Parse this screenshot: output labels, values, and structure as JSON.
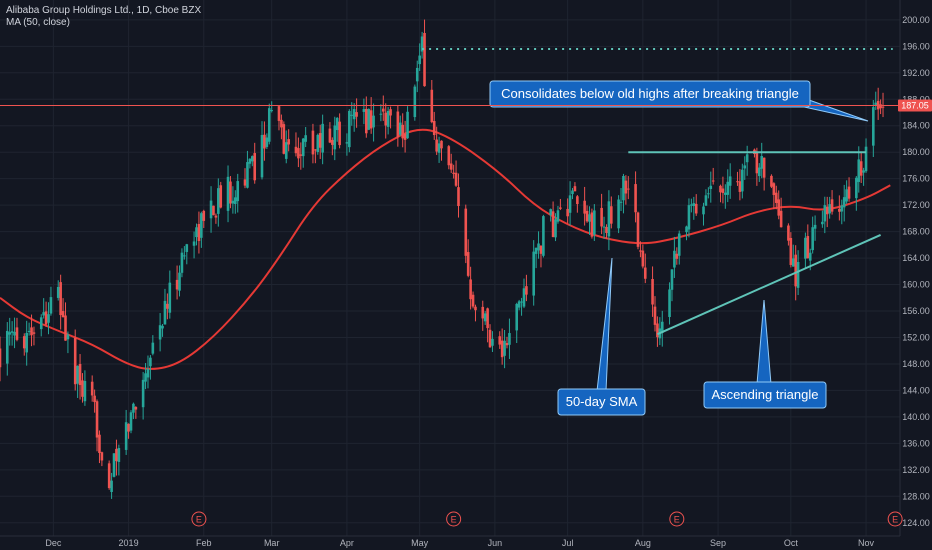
{
  "header": {
    "symbol_line": "Alibaba Group Holdings Ltd., 1D, Cboe BZX",
    "indicator_line": "MA (50, close)"
  },
  "colors": {
    "background": "#131722",
    "grid": "#1f2430",
    "up": "#26a69a",
    "down": "#ef5350",
    "sma": "#e53935",
    "trendline": "#5fc4b8",
    "callout_fill": "#1565c0",
    "callout_border": "#90caf9",
    "price_label": "#ef5350"
  },
  "price_marker": {
    "value": 187.05,
    "label": "187.05"
  },
  "annotations": {
    "consolidation": "Consolidates below old highs after breaking triangle",
    "sma": "50-day SMA",
    "triangle": "Ascending triangle"
  },
  "chart_data": {
    "type": "candlestick",
    "title": "Alibaba Group Holdings Ltd., 1D, Cboe BZX",
    "ylim": [
      122,
      203
    ],
    "y_ticks": [
      124.0,
      128.0,
      132.0,
      136.0,
      140.0,
      144.0,
      148.0,
      152.0,
      156.0,
      160.0,
      164.0,
      168.0,
      172.0,
      176.0,
      180.0,
      184.0,
      188.0,
      192.0,
      196.0,
      200.0
    ],
    "x_range": [
      "2018-11-09",
      "2019-11-15"
    ],
    "x_ticks": [
      {
        "label": "Dec",
        "date": "2018-12-01"
      },
      {
        "label": "2019",
        "date": "2019-01-01"
      },
      {
        "label": "Feb",
        "date": "2019-02-01"
      },
      {
        "label": "Mar",
        "date": "2019-03-01"
      },
      {
        "label": "Apr",
        "date": "2019-04-01"
      },
      {
        "label": "May",
        "date": "2019-05-01"
      },
      {
        "label": "Jun",
        "date": "2019-06-01"
      },
      {
        "label": "Jul",
        "date": "2019-07-01"
      },
      {
        "label": "Aug",
        "date": "2019-08-01"
      },
      {
        "label": "Sep",
        "date": "2019-09-01"
      },
      {
        "label": "Oct",
        "date": "2019-10-01"
      },
      {
        "label": "Nov",
        "date": "2019-11-01"
      }
    ],
    "close_path": [
      {
        "date": "2018-11-09",
        "close": 150
      },
      {
        "date": "2018-11-23",
        "close": 154
      },
      {
        "date": "2018-12-03",
        "close": 158
      },
      {
        "date": "2018-12-10",
        "close": 146
      },
      {
        "date": "2018-12-18",
        "close": 140
      },
      {
        "date": "2018-12-24",
        "close": 130
      },
      {
        "date": "2019-01-02",
        "close": 140
      },
      {
        "date": "2019-01-10",
        "close": 150
      },
      {
        "date": "2019-01-18",
        "close": 158
      },
      {
        "date": "2019-01-25",
        "close": 166
      },
      {
        "date": "2019-02-05",
        "close": 172
      },
      {
        "date": "2019-02-22",
        "close": 178
      },
      {
        "date": "2019-03-01",
        "close": 186
      },
      {
        "date": "2019-03-08",
        "close": 180
      },
      {
        "date": "2019-03-20",
        "close": 182
      },
      {
        "date": "2019-04-01",
        "close": 184
      },
      {
        "date": "2019-04-15",
        "close": 186
      },
      {
        "date": "2019-04-25",
        "close": 184
      },
      {
        "date": "2019-05-02",
        "close": 195
      },
      {
        "date": "2019-05-07",
        "close": 182
      },
      {
        "date": "2019-05-15",
        "close": 175
      },
      {
        "date": "2019-05-22",
        "close": 160
      },
      {
        "date": "2019-05-31",
        "close": 152
      },
      {
        "date": "2019-06-05",
        "close": 150
      },
      {
        "date": "2019-06-14",
        "close": 160
      },
      {
        "date": "2019-06-21",
        "close": 168
      },
      {
        "date": "2019-07-03",
        "close": 172
      },
      {
        "date": "2019-07-15",
        "close": 168
      },
      {
        "date": "2019-07-26",
        "close": 176
      },
      {
        "date": "2019-08-02",
        "close": 160
      },
      {
        "date": "2019-08-07",
        "close": 153
      },
      {
        "date": "2019-08-16",
        "close": 168
      },
      {
        "date": "2019-08-28",
        "close": 175
      },
      {
        "date": "2019-09-10",
        "close": 176
      },
      {
        "date": "2019-09-19",
        "close": 180
      },
      {
        "date": "2019-09-25",
        "close": 170
      },
      {
        "date": "2019-10-03",
        "close": 162
      },
      {
        "date": "2019-10-11",
        "close": 168
      },
      {
        "date": "2019-10-21",
        "close": 172
      },
      {
        "date": "2019-10-28",
        "close": 176
      },
      {
        "date": "2019-11-01",
        "close": 181
      },
      {
        "date": "2019-11-06",
        "close": 188
      },
      {
        "date": "2019-11-08",
        "close": 186
      }
    ],
    "sma_50": [
      {
        "date": "2018-11-09",
        "value": 158
      },
      {
        "date": "2018-11-20",
        "value": 155
      },
      {
        "date": "2018-12-03",
        "value": 153
      },
      {
        "date": "2018-12-17",
        "value": 151
      },
      {
        "date": "2018-12-31",
        "value": 148
      },
      {
        "date": "2019-01-10",
        "value": 147
      },
      {
        "date": "2019-01-22",
        "value": 148
      },
      {
        "date": "2019-02-05",
        "value": 152
      },
      {
        "date": "2019-02-20",
        "value": 158
      },
      {
        "date": "2019-03-04",
        "value": 164
      },
      {
        "date": "2019-03-18",
        "value": 172
      },
      {
        "date": "2019-04-01",
        "value": 177
      },
      {
        "date": "2019-04-15",
        "value": 181
      },
      {
        "date": "2019-05-01",
        "value": 184
      },
      {
        "date": "2019-05-15",
        "value": 182
      },
      {
        "date": "2019-06-03",
        "value": 177
      },
      {
        "date": "2019-06-17",
        "value": 172
      },
      {
        "date": "2019-07-01",
        "value": 169
      },
      {
        "date": "2019-07-15",
        "value": 167
      },
      {
        "date": "2019-08-01",
        "value": 166
      },
      {
        "date": "2019-08-15",
        "value": 167
      },
      {
        "date": "2019-09-03",
        "value": 169
      },
      {
        "date": "2019-09-16",
        "value": 171
      },
      {
        "date": "2019-10-01",
        "value": 172
      },
      {
        "date": "2019-10-15",
        "value": 171
      },
      {
        "date": "2019-11-01",
        "value": 173
      },
      {
        "date": "2019-11-11",
        "value": 175
      }
    ],
    "lines": {
      "prior_high": {
        "value": 195.6,
        "from": "2019-05-02",
        "to": "2019-11-12"
      },
      "triangle_resistance": {
        "value": 180,
        "from": "2019-07-26",
        "to": "2019-11-01"
      },
      "triangle_support": {
        "from": {
          "date": "2019-08-07",
          "value": 152.5
        },
        "to": {
          "date": "2019-11-07",
          "value": 167.5
        }
      }
    },
    "earnings_dates": [
      "2019-01-30",
      "2019-05-15",
      "2019-08-15",
      "2019-11-13"
    ],
    "earnings_label": "E"
  }
}
